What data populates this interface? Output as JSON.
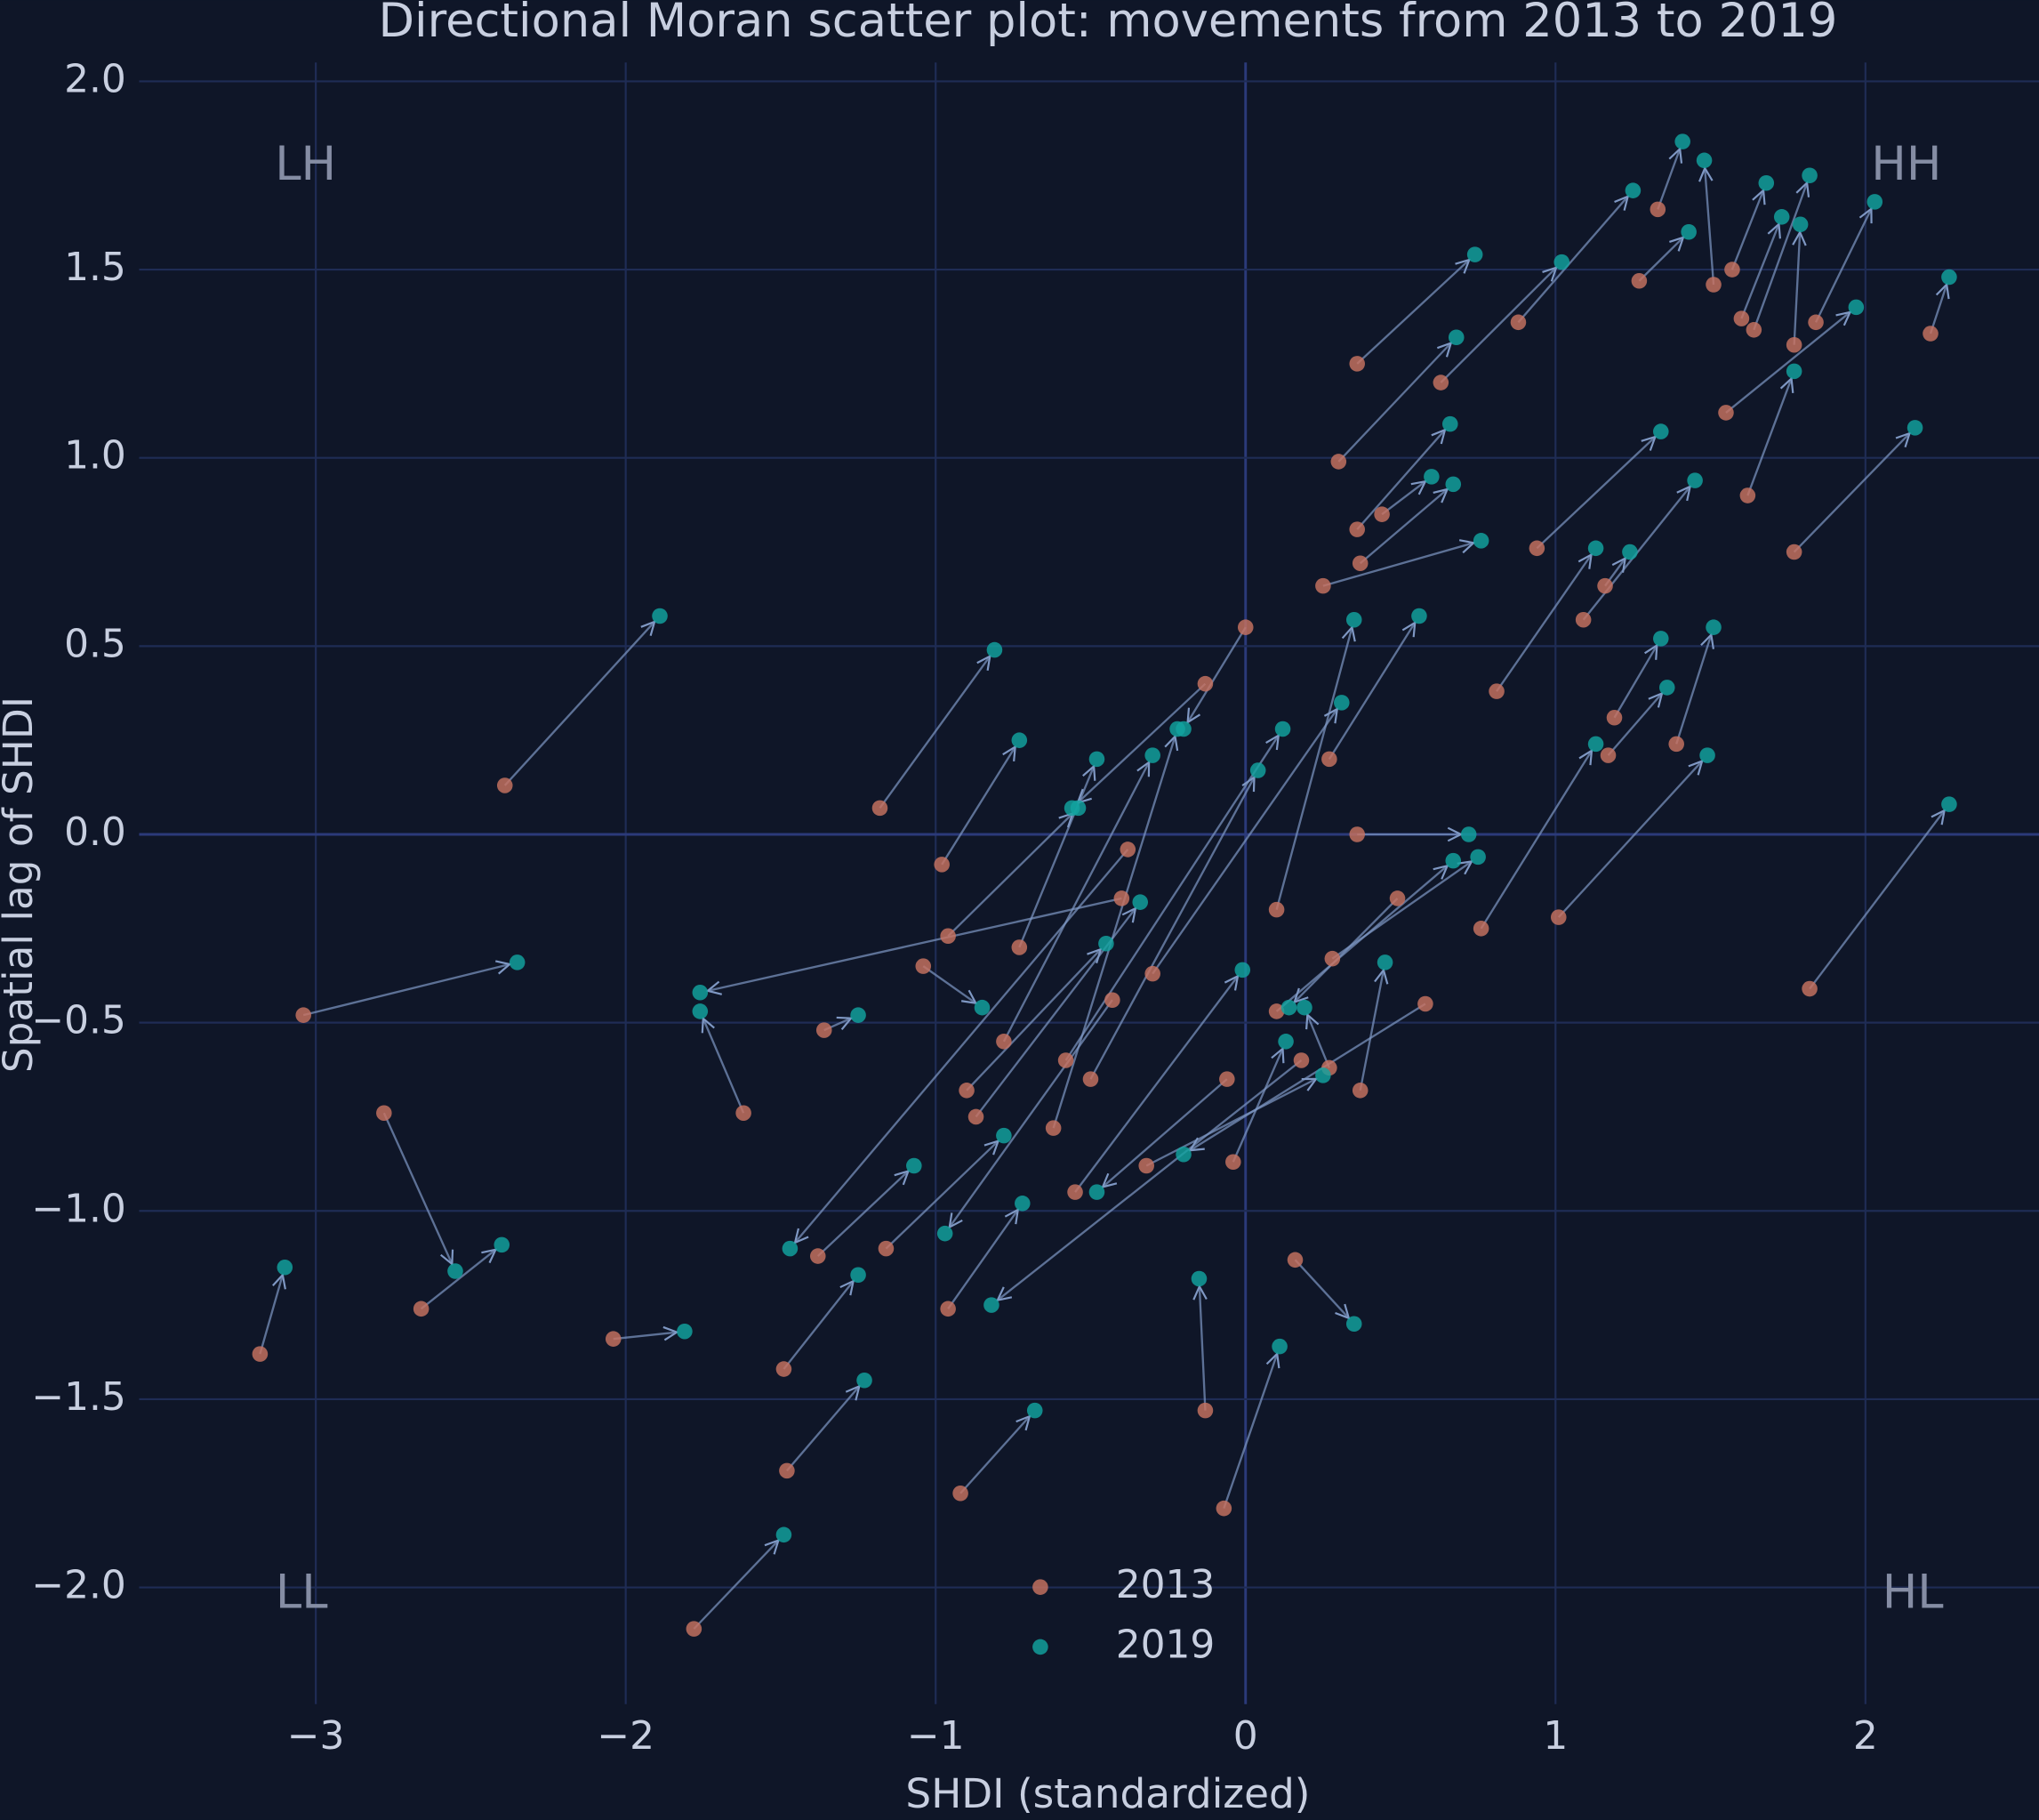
{
  "chart_data": {
    "type": "scatter",
    "title": "Directional Moran scatter plot: movements from 2013 to 2019",
    "x_label": "SHDI (standardized)",
    "y_label": "Spatial lag of SHDI",
    "xlim": [
      -3.57,
      2.56
    ],
    "ylim": [
      -2.31,
      2.05
    ],
    "xticks": [
      {
        "value": -3,
        "label": "−3"
      },
      {
        "value": -2,
        "label": "−2"
      },
      {
        "value": -1,
        "label": "−1"
      },
      0,
      1,
      2
    ],
    "yticks": [
      {
        "value": -2,
        "label": "−2.0"
      },
      {
        "value": -1.5,
        "label": "−1.5"
      },
      {
        "value": -1,
        "label": "−1.0"
      },
      {
        "value": -0.5,
        "label": "−0.5"
      },
      {
        "value": 0,
        "label": "0.0"
      },
      0.5,
      {
        "value": 1,
        "label": "1.0"
      },
      1.5,
      {
        "value": 2,
        "label": "2.0"
      }
    ],
    "grid": true,
    "arrows": true,
    "quadrant_labels": [
      "LH",
      "HH",
      "LL",
      "HL"
    ],
    "series": [
      {
        "name": "2013",
        "color": "#c87360",
        "x": [
          -3.18,
          -3.04,
          -2.78,
          -2.66,
          -2.39,
          -2.04,
          -1.62,
          -1.78,
          -1.49,
          -1.48,
          -0.92,
          -0.07,
          -0.13,
          0.16,
          -0.96,
          -1.18,
          -1.36,
          -0.98,
          0.36,
          0.3,
          0.63,
          0.88,
          1.33,
          1.27,
          1.51,
          1.57,
          1.6,
          1.64,
          1.77,
          1.84,
          1.55,
          2.21,
          1.62,
          1.77,
          1.82,
          1.01,
          1.39,
          1.19,
          1.17,
          0.76,
          1.09,
          1.16,
          0.36,
          0.44,
          0.37,
          0.25,
          0.37,
          0.58,
          -0.04,
          -0.32,
          0.36,
          -1.38,
          -1.16,
          0.0,
          -0.06,
          -0.4,
          -1.04,
          -0.87,
          -0.78,
          -0.62,
          -0.73,
          -0.58,
          -0.5,
          0.1,
          0.27,
          -0.3,
          -0.13,
          0.94,
          -0.9,
          0.1,
          0.28,
          -0.38,
          -0.55,
          0.27,
          0.18,
          -0.96,
          -0.43,
          0.49,
          0.81
        ],
        "values": [
          -1.38,
          -0.48,
          -0.74,
          -1.26,
          0.13,
          -1.34,
          -0.74,
          -2.11,
          -1.42,
          -1.69,
          -1.75,
          -1.79,
          -1.53,
          -1.13,
          -1.26,
          0.07,
          -0.52,
          -0.08,
          1.25,
          0.99,
          1.2,
          1.36,
          1.66,
          1.47,
          1.46,
          1.5,
          1.37,
          1.34,
          1.3,
          1.36,
          1.12,
          1.33,
          0.9,
          0.75,
          -0.41,
          -0.22,
          0.24,
          0.31,
          0.21,
          -0.25,
          0.57,
          0.66,
          0.81,
          0.85,
          0.72,
          0.66,
          -0.68,
          -0.45,
          -0.87,
          -0.88,
          0.0,
          -1.12,
          -1.1,
          0.55,
          -0.65,
          -0.17,
          -0.35,
          -0.75,
          -0.55,
          -0.78,
          -0.3,
          -0.6,
          -0.65,
          -0.2,
          0.2,
          -0.37,
          0.4,
          0.76,
          -0.68,
          -0.47,
          -0.33,
          -0.04,
          -0.95,
          -0.62,
          -0.6,
          -0.27,
          -0.44,
          -0.17,
          0.38
        ]
      },
      {
        "name": "2019",
        "color": "#12a3a0",
        "x": [
          -3.1,
          -2.35,
          -2.55,
          -2.4,
          -1.89,
          -1.81,
          -1.76,
          -1.49,
          -1.25,
          -1.23,
          -0.68,
          0.11,
          -0.15,
          0.35,
          -0.72,
          -0.81,
          -1.25,
          -0.73,
          0.74,
          0.68,
          1.02,
          1.25,
          1.41,
          1.43,
          1.48,
          1.68,
          1.73,
          1.82,
          1.79,
          2.03,
          1.97,
          2.27,
          1.77,
          2.16,
          2.27,
          1.49,
          1.51,
          1.34,
          1.36,
          1.13,
          1.45,
          1.24,
          0.66,
          0.6,
          0.67,
          0.76,
          0.45,
          -0.2,
          0.13,
          0.25,
          0.72,
          -1.07,
          -0.78,
          -0.2,
          -0.48,
          -1.76,
          -0.85,
          -0.34,
          -0.3,
          -0.22,
          -0.48,
          0.12,
          0.04,
          0.35,
          0.56,
          0.31,
          -0.56,
          1.34,
          -0.45,
          0.67,
          0.75,
          -1.47,
          -0.01,
          0.19,
          -0.82,
          -0.54,
          -0.97,
          0.14,
          1.13
        ],
        "values": [
          -1.15,
          -0.34,
          -1.16,
          -1.09,
          0.58,
          -1.32,
          -0.47,
          -1.86,
          -1.17,
          -1.45,
          -1.53,
          -1.36,
          -1.18,
          -1.3,
          -0.98,
          0.49,
          -0.48,
          0.25,
          1.54,
          1.32,
          1.52,
          1.71,
          1.84,
          1.6,
          1.79,
          1.73,
          1.64,
          1.75,
          1.62,
          1.68,
          1.4,
          1.48,
          1.23,
          1.08,
          0.08,
          0.21,
          0.55,
          0.52,
          0.39,
          0.24,
          0.94,
          0.75,
          1.09,
          0.95,
          0.93,
          0.78,
          -0.34,
          -0.85,
          -0.55,
          -0.64,
          0.0,
          -0.88,
          -0.8,
          0.28,
          -0.95,
          -0.42,
          -0.46,
          -0.18,
          0.21,
          0.28,
          0.2,
          0.28,
          0.17,
          0.57,
          0.58,
          0.35,
          0.07,
          1.07,
          -0.29,
          -0.07,
          -0.06,
          -1.1,
          -0.36,
          -0.46,
          -1.25,
          0.07,
          -1.06,
          -0.46,
          0.76
        ]
      }
    ]
  }
}
